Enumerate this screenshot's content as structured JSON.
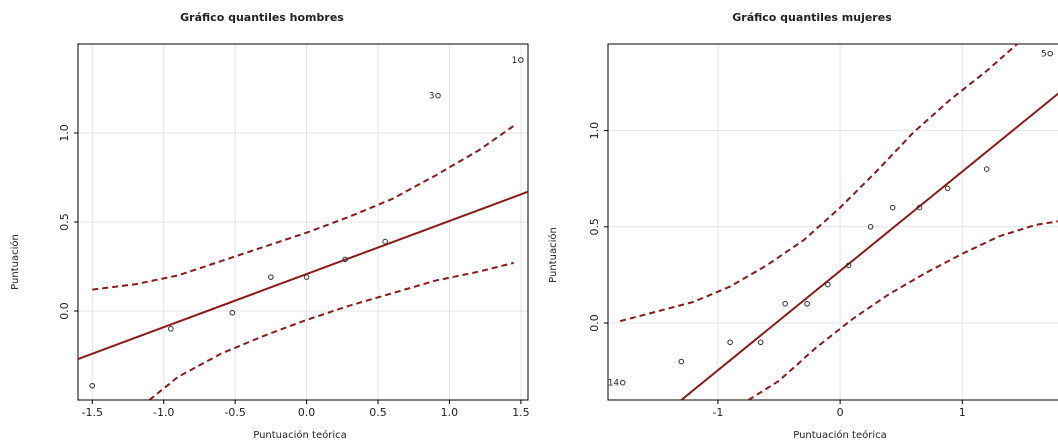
{
  "chart_data": [
    {
      "type": "scatter",
      "title": "Gráfico quantiles hombres",
      "xlabel": "Puntuación teórica",
      "ylabel": "Puntuación",
      "xlim": [
        -1.6,
        1.55
      ],
      "ylim": [
        -0.5,
        1.5
      ],
      "x_ticks": [
        -1.5,
        -1.0,
        -0.5,
        0.0,
        0.5,
        1.0,
        1.5
      ],
      "x_tick_labels": [
        "-1.5",
        "-1.0",
        "-0.5",
        "0.0",
        "0.5",
        "1.0",
        "1.5"
      ],
      "y_ticks": [
        0.0,
        0.5,
        1.0
      ],
      "y_tick_labels": [
        "0.0",
        "0.5",
        "1.0"
      ],
      "grid": true,
      "points": [
        {
          "x": -1.5,
          "y": -0.42,
          "label": ""
        },
        {
          "x": -0.95,
          "y": -0.1,
          "label": ""
        },
        {
          "x": -0.52,
          "y": -0.01,
          "label": ""
        },
        {
          "x": -0.25,
          "y": 0.19,
          "label": ""
        },
        {
          "x": 0.0,
          "y": 0.19,
          "label": ""
        },
        {
          "x": 0.27,
          "y": 0.29,
          "label": ""
        },
        {
          "x": 0.55,
          "y": 0.39,
          "label": ""
        },
        {
          "x": 0.92,
          "y": 1.21,
          "label": "3"
        },
        {
          "x": 1.5,
          "y": 1.41,
          "label": "1"
        }
      ],
      "fit_line": {
        "x": [
          -1.6,
          1.55
        ],
        "y": [
          -0.27,
          0.67
        ]
      },
      "upper_band": {
        "x": [
          -1.5,
          -1.2,
          -0.9,
          -0.6,
          -0.3,
          0.0,
          0.3,
          0.6,
          0.9,
          1.2,
          1.45
        ],
        "y": [
          0.12,
          0.15,
          0.2,
          0.28,
          0.36,
          0.44,
          0.53,
          0.63,
          0.76,
          0.9,
          1.04
        ]
      },
      "lower_band": {
        "x": [
          -1.1,
          -0.9,
          -0.6,
          -0.3,
          0.0,
          0.3,
          0.6,
          0.9,
          1.2,
          1.45
        ],
        "y": [
          -0.5,
          -0.37,
          -0.24,
          -0.14,
          -0.05,
          0.03,
          0.1,
          0.17,
          0.22,
          0.27
        ]
      },
      "colors": {
        "fit": "#8b1a1a",
        "band": "#8b1a1a",
        "grid": "#e4e4e4",
        "points": "#333333"
      }
    },
    {
      "type": "scatter",
      "title": "Gráfico quantiles mujeres",
      "xlabel": "Puntuación teórica",
      "ylabel": "Puntuación",
      "xlim": [
        -1.9,
        1.8
      ],
      "ylim": [
        -0.4,
        1.45
      ],
      "x_ticks": [
        -1.0,
        0.0,
        1.0
      ],
      "x_tick_labels": [
        "-1",
        "0",
        "1"
      ],
      "y_ticks": [
        0.0,
        0.5,
        1.0
      ],
      "y_tick_labels": [
        "0.0",
        "0.5",
        "1.0"
      ],
      "grid": true,
      "points": [
        {
          "x": -1.78,
          "y": -0.31,
          "label": "14"
        },
        {
          "x": -1.3,
          "y": -0.2,
          "label": ""
        },
        {
          "x": -0.9,
          "y": -0.1,
          "label": ""
        },
        {
          "x": -0.65,
          "y": -0.1,
          "label": ""
        },
        {
          "x": -0.45,
          "y": 0.1,
          "label": ""
        },
        {
          "x": -0.27,
          "y": 0.1,
          "label": ""
        },
        {
          "x": -0.1,
          "y": 0.2,
          "label": ""
        },
        {
          "x": 0.07,
          "y": 0.3,
          "label": ""
        },
        {
          "x": 0.25,
          "y": 0.5,
          "label": ""
        },
        {
          "x": 0.43,
          "y": 0.6,
          "label": ""
        },
        {
          "x": 0.65,
          "y": 0.6,
          "label": ""
        },
        {
          "x": 0.88,
          "y": 0.7,
          "label": ""
        },
        {
          "x": 1.2,
          "y": 0.8,
          "label": ""
        },
        {
          "x": 1.72,
          "y": 1.4,
          "label": "5"
        }
      ],
      "fit_line": {
        "x": [
          -1.3,
          1.8
        ],
        "y": [
          -0.4,
          1.2
        ]
      },
      "upper_band": {
        "x": [
          -1.8,
          -1.5,
          -1.2,
          -0.9,
          -0.6,
          -0.3,
          0.0,
          0.3,
          0.6,
          0.9,
          1.2,
          1.45
        ],
        "y": [
          0.01,
          0.06,
          0.11,
          0.19,
          0.3,
          0.43,
          0.6,
          0.79,
          0.99,
          1.16,
          1.31,
          1.45
        ]
      },
      "lower_band": {
        "x": [
          -0.75,
          -0.5,
          -0.2,
          0.1,
          0.4,
          0.7,
          1.0,
          1.3,
          1.6,
          1.8
        ],
        "y": [
          -0.4,
          -0.3,
          -0.13,
          0.02,
          0.15,
          0.26,
          0.36,
          0.45,
          0.51,
          0.53
        ]
      },
      "colors": {
        "fit": "#8b1a1a",
        "band": "#8b1a1a",
        "grid": "#e4e4e4",
        "points": "#333333"
      }
    }
  ]
}
